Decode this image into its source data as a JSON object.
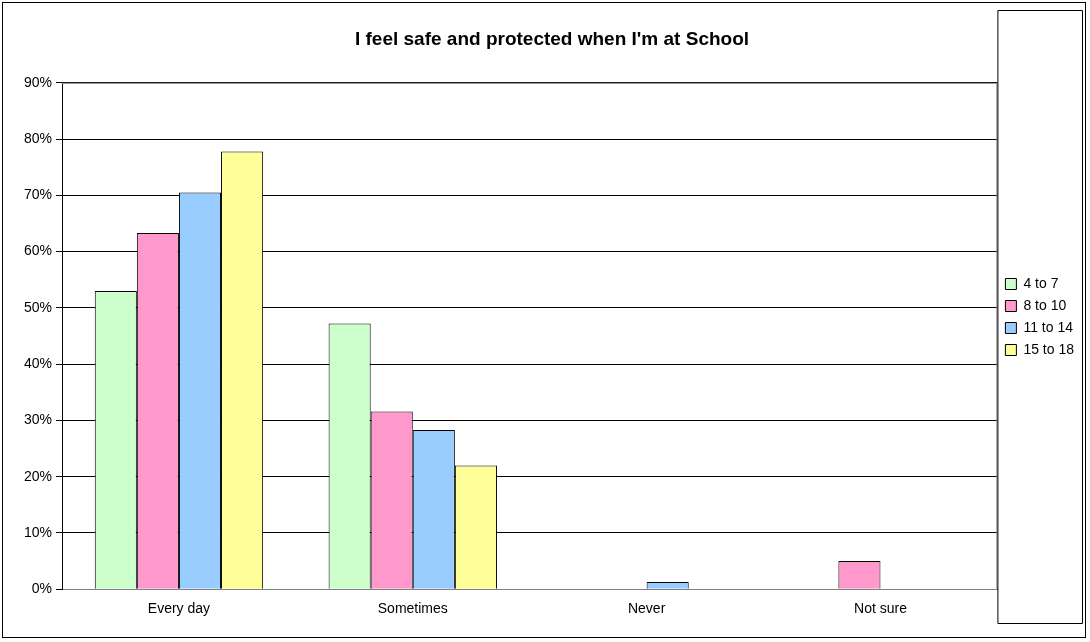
{
  "chart_data": {
    "type": "bar",
    "title": "I feel safe and protected when I'm at School",
    "categories": [
      "Every day",
      "Sometimes",
      "Never",
      "Not sure"
    ],
    "series": [
      {
        "name": "4 to 7",
        "color": "#ccffcc",
        "values": [
          53,
          47.2,
          0,
          0
        ]
      },
      {
        "name": "8 to 10",
        "color": "#ff99cc",
        "values": [
          63.3,
          31.6,
          0,
          5
        ]
      },
      {
        "name": "11 to 14",
        "color": "#99ccff",
        "values": [
          70.5,
          28.3,
          1.3,
          0
        ]
      },
      {
        "name": "15 to 18",
        "color": "#ffff99",
        "values": [
          77.8,
          22,
          0,
          0
        ]
      }
    ],
    "ylim": [
      0,
      90
    ],
    "yticks": [
      {
        "value": 0,
        "label": "0%"
      },
      {
        "value": 10,
        "label": "10%"
      },
      {
        "value": 20,
        "label": "20%"
      },
      {
        "value": 30,
        "label": "30%"
      },
      {
        "value": 40,
        "label": "40%"
      },
      {
        "value": 50,
        "label": "50%"
      },
      {
        "value": 60,
        "label": "60%"
      },
      {
        "value": 70,
        "label": "70%"
      },
      {
        "value": 80,
        "label": "80%"
      },
      {
        "value": 90,
        "label": "90%"
      }
    ],
    "grid": "y",
    "legend": "right"
  }
}
